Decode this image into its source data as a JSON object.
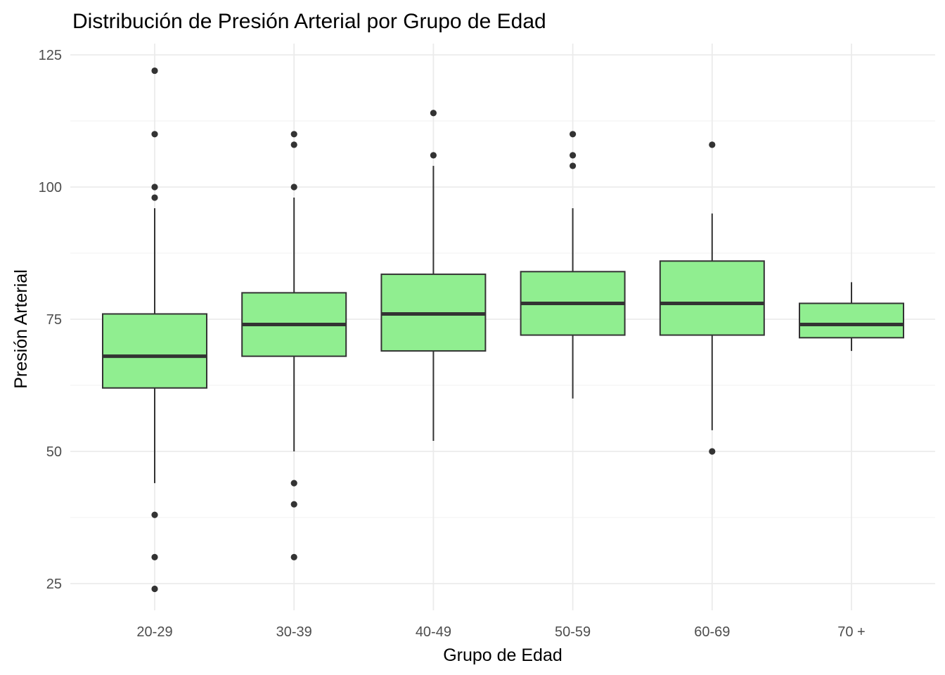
{
  "chart_data": {
    "type": "boxplot",
    "title": "Distribución de Presión Arterial por Grupo de Edad",
    "xlabel": "Grupo de Edad",
    "ylabel": "Presión Arterial",
    "categories": [
      "20-29",
      "30-39",
      "40-49",
      "50-59",
      "60-69",
      "70 +"
    ],
    "y_ticks": [
      25,
      50,
      75,
      100,
      125
    ],
    "ylim": [
      20,
      127
    ],
    "grid": true,
    "legend": "none",
    "fill_color": "#90ee90",
    "line_color": "#333333",
    "boxes": [
      {
        "category": "20-29",
        "whisker_low": 44,
        "q1": 62,
        "median": 68,
        "q3": 76,
        "whisker_high": 96,
        "outliers": [
          122,
          110,
          100,
          98,
          38,
          30,
          24
        ]
      },
      {
        "category": "30-39",
        "whisker_low": 50,
        "q1": 68,
        "median": 74,
        "q3": 80,
        "whisker_high": 98,
        "outliers": [
          110,
          108,
          100,
          44,
          40,
          30
        ]
      },
      {
        "category": "40-49",
        "whisker_low": 52,
        "q1": 69,
        "median": 76,
        "q3": 83.5,
        "whisker_high": 104,
        "outliers": [
          114,
          106
        ]
      },
      {
        "category": "50-59",
        "whisker_low": 60,
        "q1": 72,
        "median": 78,
        "q3": 84,
        "whisker_high": 96,
        "outliers": [
          110,
          106,
          104
        ]
      },
      {
        "category": "60-69",
        "whisker_low": 54,
        "q1": 72,
        "median": 78,
        "q3": 86,
        "whisker_high": 95,
        "outliers": [
          108,
          50
        ]
      },
      {
        "category": "70 +",
        "whisker_low": 69,
        "q1": 71.5,
        "median": 74,
        "q3": 78,
        "whisker_high": 82,
        "outliers": []
      }
    ]
  }
}
